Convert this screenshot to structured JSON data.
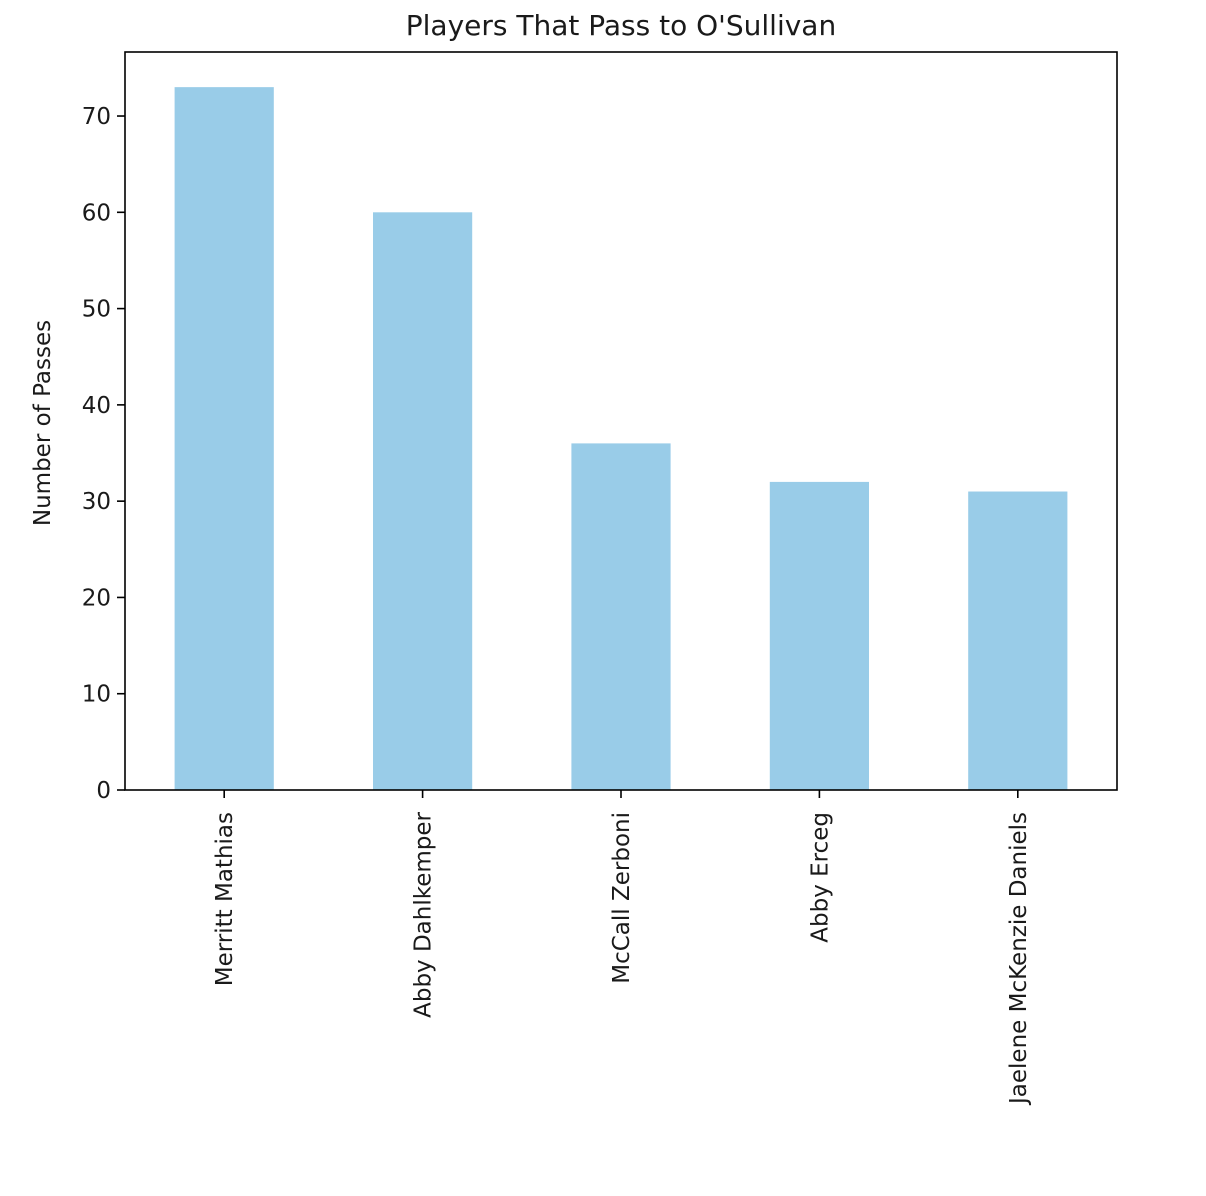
{
  "chart_data": {
    "type": "bar",
    "title": "Players That Pass to O'Sullivan",
    "xlabel": "",
    "ylabel": "Number of Passes",
    "categories": [
      "Merritt Mathias",
      "Abby Dahlkemper",
      "McCall Zerboni",
      "Abby Erceg",
      "Jaelene McKenzie Daniels"
    ],
    "values": [
      73,
      60,
      36,
      32,
      31
    ],
    "ylim": [
      0,
      76.65
    ],
    "yticks": [
      0,
      10,
      20,
      30,
      40,
      50,
      60,
      70
    ],
    "grid": false,
    "bar_color": "#99cce8",
    "x_tick_rotation": "vertical"
  }
}
